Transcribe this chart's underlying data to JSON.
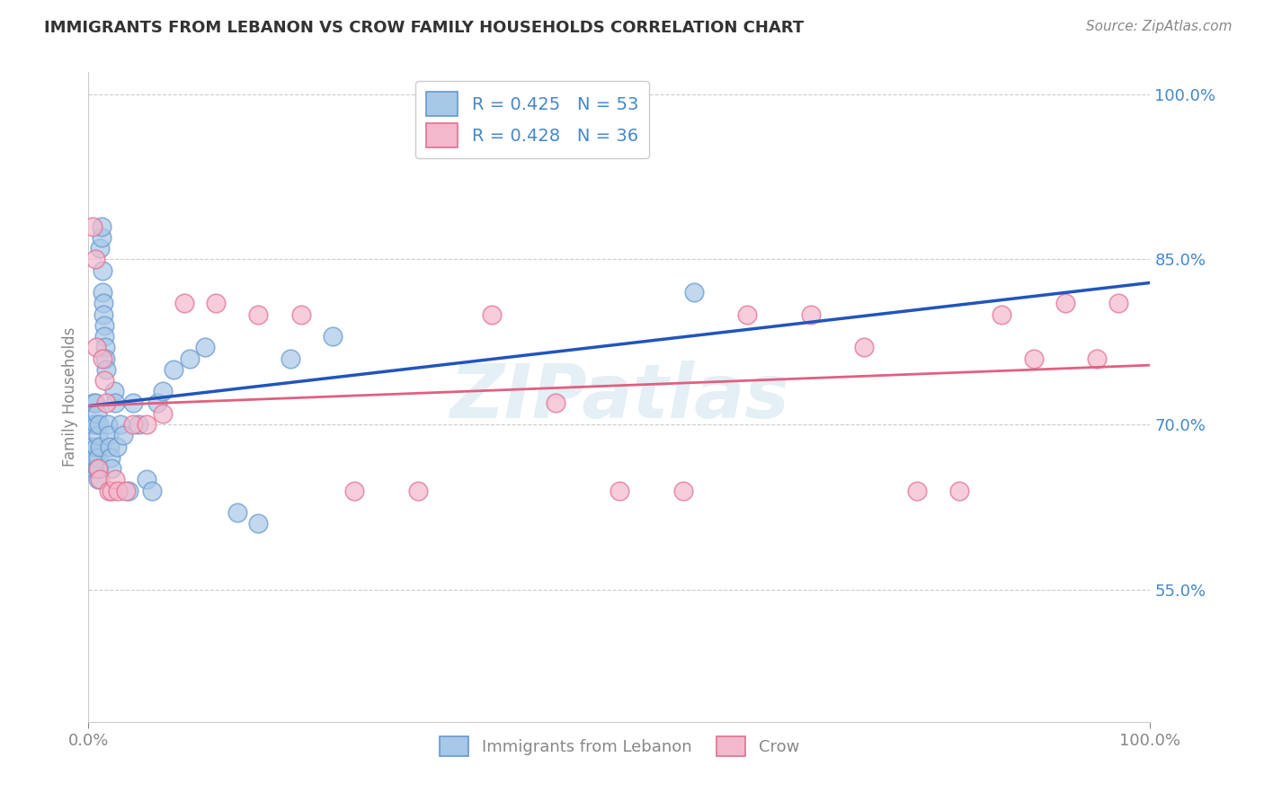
{
  "title": "IMMIGRANTS FROM LEBANON VS CROW FAMILY HOUSEHOLDS CORRELATION CHART",
  "source": "Source: ZipAtlas.com",
  "ylabel": "Family Households",
  "legend_blue_r": "R = 0.425",
  "legend_blue_n": "N = 53",
  "legend_pink_r": "R = 0.428",
  "legend_pink_n": "N = 36",
  "legend_label_blue": "Immigrants from Lebanon",
  "legend_label_pink": "Crow",
  "watermark": "ZIPatlas",
  "xlim": [
    0.0,
    1.0
  ],
  "ylim": [
    0.43,
    1.02
  ],
  "yticks": [
    0.55,
    0.7,
    0.85,
    1.0
  ],
  "ytick_labels": [
    "55.0%",
    "70.0%",
    "85.0%",
    "100.0%"
  ],
  "xtick_labels": [
    "0.0%",
    "100.0%"
  ],
  "blue_color": "#a8c8e8",
  "pink_color": "#f4b8cc",
  "blue_edge_color": "#6699cc",
  "pink_edge_color": "#e07090",
  "blue_line_color": "#2255bb",
  "pink_line_color": "#e06080",
  "tick_label_color": "#4488cc",
  "background_color": "#ffffff",
  "grid_color": "#cccccc",
  "title_color": "#333333",
  "axis_color": "#888888",
  "watermark_color": "#d5e5f0",
  "source_color": "#888888",
  "blue_x": [
    0.003,
    0.004,
    0.005,
    0.005,
    0.006,
    0.006,
    0.007,
    0.007,
    0.008,
    0.008,
    0.009,
    0.009,
    0.009,
    0.01,
    0.01,
    0.011,
    0.011,
    0.012,
    0.012,
    0.013,
    0.013,
    0.014,
    0.014,
    0.015,
    0.015,
    0.016,
    0.016,
    0.017,
    0.018,
    0.019,
    0.02,
    0.021,
    0.022,
    0.024,
    0.025,
    0.027,
    0.03,
    0.033,
    0.038,
    0.042,
    0.047,
    0.055,
    0.06,
    0.065,
    0.07,
    0.08,
    0.095,
    0.11,
    0.14,
    0.16,
    0.19,
    0.23,
    0.57
  ],
  "blue_y": [
    0.68,
    0.7,
    0.66,
    0.72,
    0.67,
    0.72,
    0.68,
    0.7,
    0.66,
    0.71,
    0.65,
    0.67,
    0.69,
    0.66,
    0.7,
    0.68,
    0.86,
    0.87,
    0.88,
    0.84,
    0.82,
    0.81,
    0.8,
    0.79,
    0.78,
    0.77,
    0.76,
    0.75,
    0.7,
    0.69,
    0.68,
    0.67,
    0.66,
    0.73,
    0.72,
    0.68,
    0.7,
    0.69,
    0.64,
    0.72,
    0.7,
    0.65,
    0.64,
    0.72,
    0.73,
    0.75,
    0.76,
    0.77,
    0.62,
    0.61,
    0.76,
    0.78,
    0.82
  ],
  "pink_x": [
    0.004,
    0.006,
    0.007,
    0.009,
    0.011,
    0.013,
    0.015,
    0.017,
    0.019,
    0.022,
    0.025,
    0.028,
    0.035,
    0.042,
    0.055,
    0.07,
    0.09,
    0.12,
    0.16,
    0.2,
    0.25,
    0.31,
    0.38,
    0.44,
    0.5,
    0.56,
    0.62,
    0.68,
    0.73,
    0.78,
    0.82,
    0.86,
    0.89,
    0.92,
    0.95,
    0.97
  ],
  "pink_y": [
    0.88,
    0.85,
    0.77,
    0.66,
    0.65,
    0.76,
    0.74,
    0.72,
    0.64,
    0.64,
    0.65,
    0.64,
    0.64,
    0.7,
    0.7,
    0.71,
    0.81,
    0.81,
    0.8,
    0.8,
    0.64,
    0.64,
    0.8,
    0.72,
    0.64,
    0.64,
    0.8,
    0.8,
    0.77,
    0.64,
    0.64,
    0.8,
    0.76,
    0.81,
    0.76,
    0.81
  ]
}
